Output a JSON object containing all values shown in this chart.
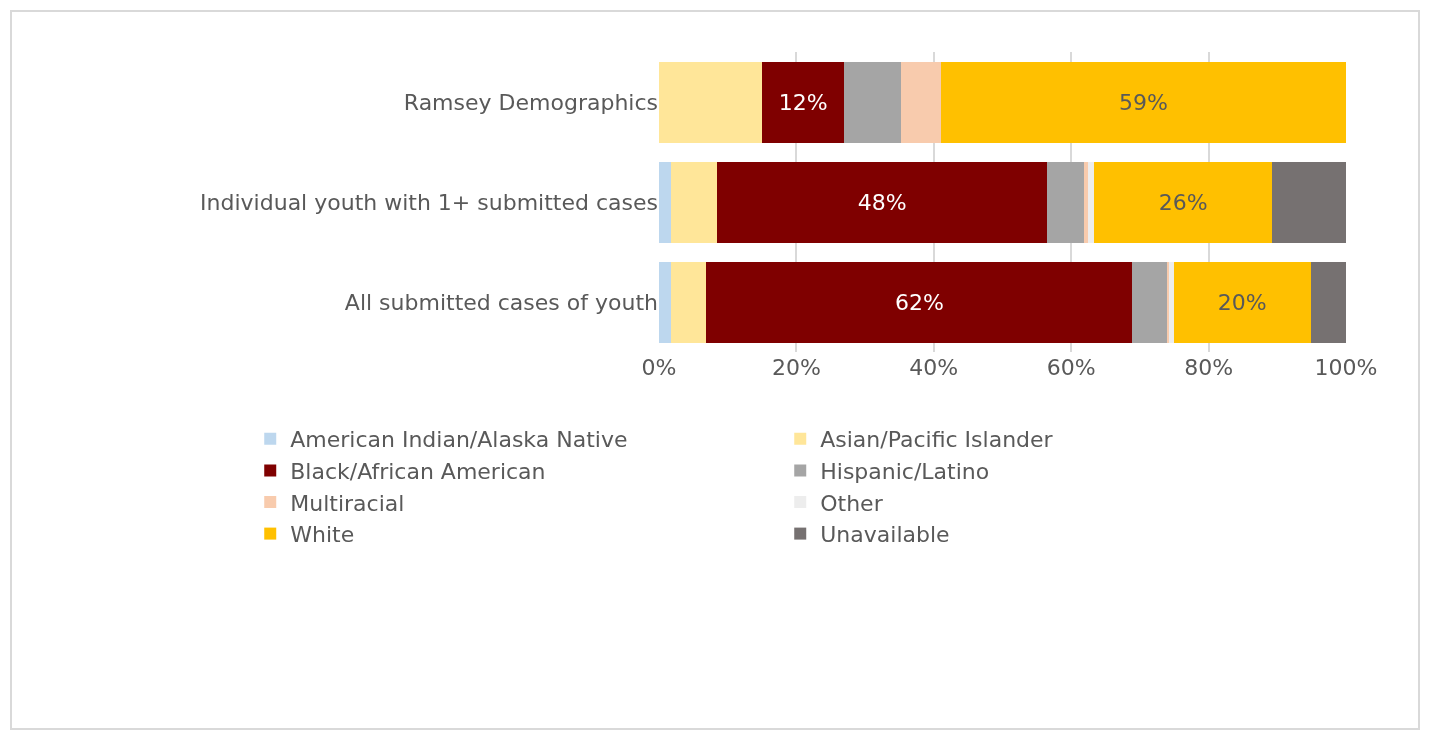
{
  "chart_data": {
    "type": "bar",
    "orientation": "horizontal",
    "stacked": true,
    "categories": [
      "Ramsey Demographics",
      "Individual youth with 1+ submitted cases",
      "All submitted cases of youth"
    ],
    "series": [
      {
        "name": "American Indian/Alaska Native",
        "color": "#bdd7ee",
        "values": [
          0,
          1.7,
          1.7
        ]
      },
      {
        "name": "Asian/Pacific Islander",
        "color": "#ffe699",
        "values": [
          15,
          6.8,
          5.2
        ]
      },
      {
        "name": "Black/African American",
        "color": "#7f0000",
        "values": [
          12,
          48,
          62
        ],
        "value_labels": [
          "12%",
          "48%",
          "62%"
        ]
      },
      {
        "name": "Hispanic/Latino",
        "color": "#a5a5a5",
        "values": [
          8.2,
          5.3,
          5
        ]
      },
      {
        "name": "Multiracial",
        "color": "#f8cbad",
        "values": [
          5.8,
          0.7,
          0.3
        ]
      },
      {
        "name": "Other",
        "color": "#ededed",
        "values": [
          0,
          0.8,
          0.7
        ]
      },
      {
        "name": "White",
        "color": "#ffc000",
        "values": [
          59,
          26,
          20
        ],
        "value_labels": [
          "59%",
          "26%",
          "20%"
        ]
      },
      {
        "name": "Unavailable",
        "color": "#767171",
        "values": [
          0,
          10.7,
          5.1
        ]
      }
    ],
    "xlim": [
      0,
      100
    ],
    "xticks": [
      {
        "value": 0,
        "label": "0%"
      },
      {
        "value": 20,
        "label": "20%"
      },
      {
        "value": 40,
        "label": "40%"
      },
      {
        "value": 60,
        "label": "60%"
      },
      {
        "value": 80,
        "label": "80%"
      },
      {
        "value": 100,
        "label": "100%"
      }
    ],
    "grid": "x",
    "legend": "bottom"
  }
}
